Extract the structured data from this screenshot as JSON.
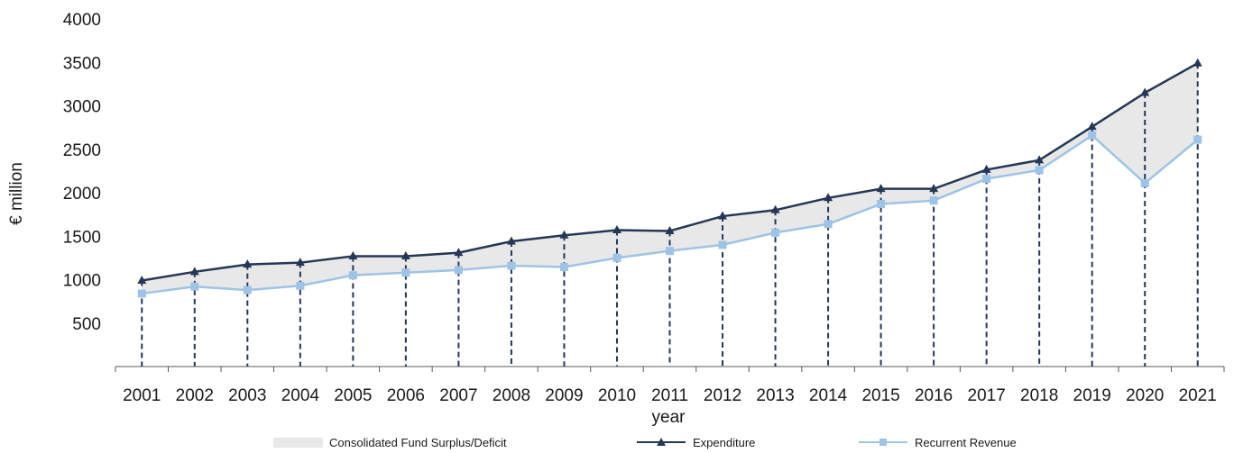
{
  "chart_data": {
    "type": "line",
    "xlabel": "year",
    "ylabel": "€ million",
    "categories": [
      "2001",
      "2002",
      "2003",
      "2004",
      "2005",
      "2006",
      "2007",
      "2008",
      "2009",
      "2010",
      "2011",
      "2012",
      "2013",
      "2014",
      "2015",
      "2016",
      "2017",
      "2018",
      "2019",
      "2020",
      "2021"
    ],
    "yticks": [
      "500",
      "1000",
      "1500",
      "2000",
      "2500",
      "3000",
      "3500",
      "4000"
    ],
    "ylim": [
      0,
      4000
    ],
    "grid": false,
    "legend_position": "bottom",
    "series": [
      {
        "name": "Expenditure",
        "marker": "triangle",
        "color": "#253756",
        "values": [
          990,
          1090,
          1175,
          1195,
          1270,
          1270,
          1310,
          1440,
          1510,
          1570,
          1560,
          1730,
          1800,
          1940,
          2045,
          2045,
          2265,
          2375,
          2760,
          3150,
          3490
        ]
      },
      {
        "name": "Recurrent Revenue",
        "marker": "square",
        "color": "#9dc3e6",
        "values": [
          840,
          920,
          880,
          930,
          1050,
          1080,
          1110,
          1160,
          1145,
          1250,
          1330,
          1400,
          1540,
          1640,
          1870,
          1910,
          2160,
          2260,
          2660,
          2110,
          2610
        ]
      }
    ],
    "area": {
      "name": "Consolidated Fund Surplus/Deficit",
      "color": "#e8e8e8"
    }
  }
}
